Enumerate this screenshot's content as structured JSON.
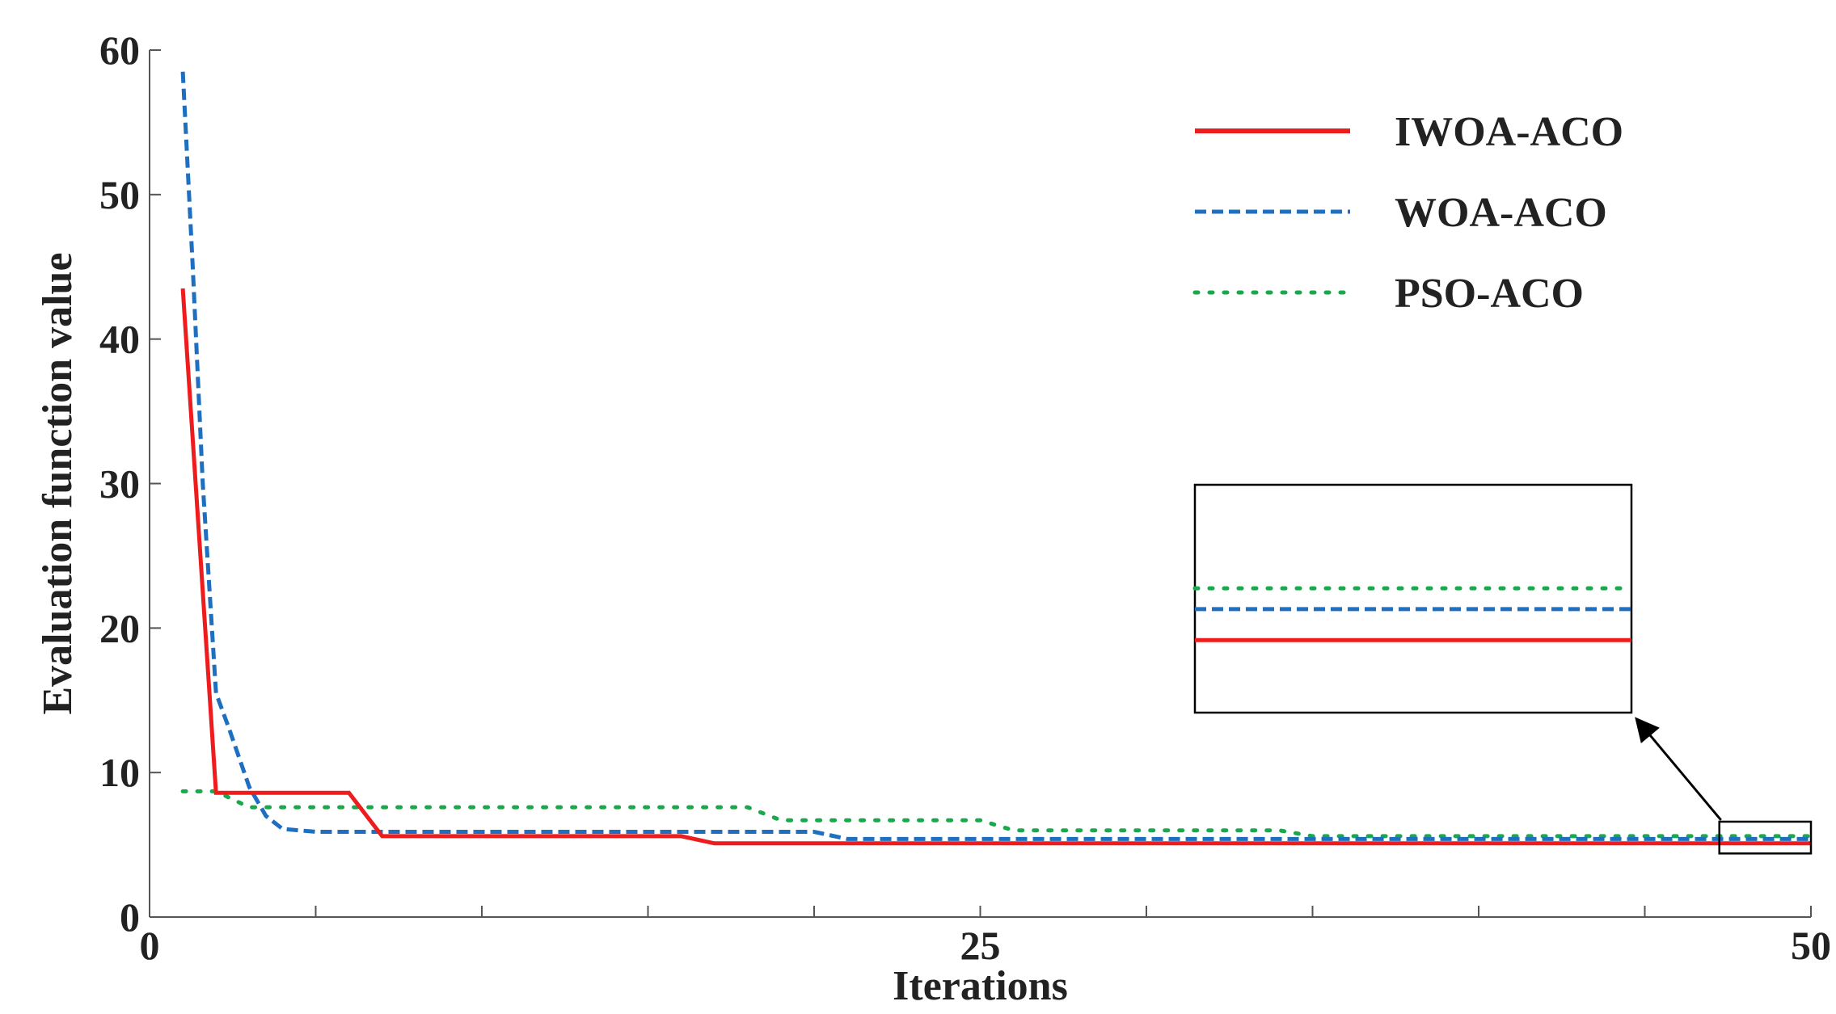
{
  "chart_data": {
    "type": "line",
    "xlabel": "Iterations",
    "ylabel": "Evaluation function value",
    "xlim": [
      0,
      50
    ],
    "ylim": [
      0,
      60
    ],
    "xticks": [
      0,
      25,
      50
    ],
    "yticks": [
      0,
      10,
      20,
      30,
      40,
      50,
      60
    ],
    "legend_position": "top-right",
    "series": [
      {
        "name": "IWOA-ACO",
        "color": "#ee1c1c",
        "style": "solid",
        "x": [
          1,
          2,
          3,
          4,
          5,
          6,
          7,
          8,
          9,
          10,
          11,
          12,
          13,
          14,
          15,
          16,
          17,
          18,
          19,
          20,
          21,
          22,
          23,
          24,
          25,
          26,
          27,
          28,
          29,
          30,
          31,
          32,
          33,
          34,
          35,
          36,
          37,
          38,
          39,
          40,
          41,
          42,
          43,
          44,
          45,
          46,
          47,
          48,
          49,
          50
        ],
        "y": [
          43.5,
          8.6,
          8.6,
          8.6,
          8.6,
          8.6,
          5.6,
          5.6,
          5.6,
          5.6,
          5.6,
          5.6,
          5.6,
          5.6,
          5.6,
          5.6,
          5.1,
          5.1,
          5.1,
          5.1,
          5.1,
          5.1,
          5.1,
          5.1,
          5.1,
          5.1,
          5.1,
          5.1,
          5.1,
          5.1,
          5.1,
          5.1,
          5.1,
          5.1,
          5.1,
          5.1,
          5.1,
          5.1,
          5.1,
          5.1,
          5.1,
          5.1,
          5.1,
          5.1,
          5.1,
          5.1,
          5.1,
          5.1,
          5.1,
          5.1
        ]
      },
      {
        "name": "WOA-ACO",
        "color": "#1f6fc0",
        "style": "dashed",
        "x": [
          1,
          1.3,
          1.6,
          2,
          2.4,
          3,
          3.5,
          4,
          5,
          6,
          7,
          8,
          9,
          10,
          11,
          12,
          13,
          14,
          15,
          16,
          17,
          18,
          19,
          20,
          21,
          22,
          23,
          24,
          25,
          26,
          27,
          28,
          29,
          30,
          31,
          32,
          33,
          34,
          35,
          36,
          37,
          38,
          39,
          40,
          41,
          42,
          43,
          44,
          45,
          46,
          47,
          48,
          49,
          50
        ],
        "y": [
          58.5,
          45,
          30,
          15.5,
          13,
          9,
          7,
          6.1,
          5.9,
          5.9,
          5.9,
          5.9,
          5.9,
          5.9,
          5.9,
          5.9,
          5.9,
          5.9,
          5.9,
          5.9,
          5.9,
          5.9,
          5.9,
          5.9,
          5.4,
          5.4,
          5.4,
          5.4,
          5.4,
          5.4,
          5.4,
          5.4,
          5.4,
          5.4,
          5.4,
          5.4,
          5.4,
          5.4,
          5.4,
          5.4,
          5.4,
          5.4,
          5.4,
          5.4,
          5.4,
          5.4,
          5.4,
          5.4,
          5.4,
          5.4,
          5.4,
          5.4,
          5.4,
          5.4
        ]
      },
      {
        "name": "PSO-ACO",
        "color": "#1aa84c",
        "style": "dotted",
        "x": [
          1,
          2,
          3,
          4,
          5,
          6,
          7,
          8,
          9,
          10,
          11,
          12,
          13,
          14,
          15,
          16,
          17,
          18,
          19,
          20,
          21,
          22,
          23,
          24,
          25,
          26,
          27,
          28,
          29,
          30,
          31,
          32,
          33,
          34,
          35,
          36,
          37,
          38,
          39,
          40,
          41,
          42,
          43,
          44,
          45,
          46,
          47,
          48,
          49,
          50
        ],
        "y": [
          8.7,
          8.7,
          7.6,
          7.6,
          7.6,
          7.6,
          7.6,
          7.6,
          7.6,
          7.6,
          7.6,
          7.6,
          7.6,
          7.6,
          7.6,
          7.6,
          7.6,
          7.6,
          6.7,
          6.7,
          6.7,
          6.7,
          6.7,
          6.7,
          6.7,
          6.0,
          6.0,
          6.0,
          6.0,
          6.0,
          6.0,
          6.0,
          6.0,
          6.0,
          5.6,
          5.6,
          5.6,
          5.6,
          5.6,
          5.6,
          5.6,
          5.6,
          5.6,
          5.6,
          5.6,
          5.6,
          5.6,
          5.6,
          5.6,
          5.6
        ]
      }
    ],
    "inset": {
      "source_x": [
        47,
        50
      ],
      "source_y": [
        4.4,
        6.6
      ],
      "levels": [
        {
          "series": "PSO-ACO",
          "value": 5.6
        },
        {
          "series": "WOA-ACO",
          "value": 5.4
        },
        {
          "series": "IWOA-ACO",
          "value": 5.1
        }
      ]
    }
  }
}
